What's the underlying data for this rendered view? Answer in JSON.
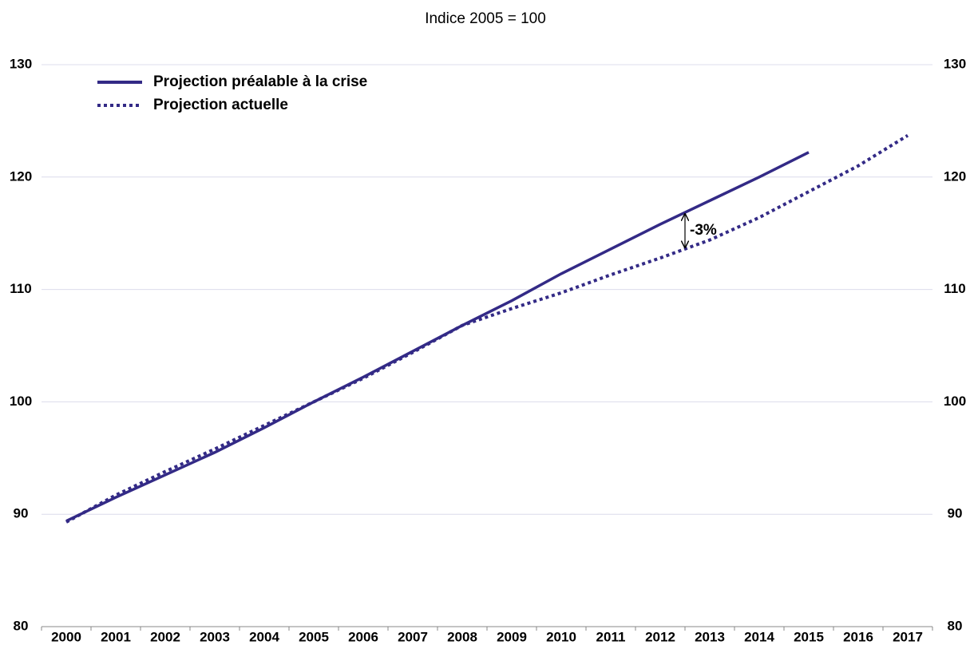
{
  "chart_data": {
    "type": "line",
    "title": "Indice 2005 = 100",
    "categories": [
      "2000",
      "2001",
      "2002",
      "2003",
      "2004",
      "2005",
      "2006",
      "2007",
      "2008",
      "2009",
      "2010",
      "2011",
      "2012",
      "2013",
      "2014",
      "2015",
      "2016",
      "2017"
    ],
    "series": [
      {
        "name": "Projection préalable à la crise",
        "color": "#332a86",
        "style": "solid",
        "values": [
          89.4,
          91.5,
          93.5,
          95.5,
          97.7,
          100,
          102.2,
          104.5,
          106.8,
          109.0,
          111.4,
          113.6,
          115.8,
          117.9,
          120.0,
          122.2,
          null,
          null
        ]
      },
      {
        "name": "Projection actuelle",
        "color": "#332a86",
        "style": "dotted",
        "values": [
          89.3,
          91.7,
          93.8,
          95.8,
          97.9,
          100,
          102.1,
          104.4,
          106.8,
          108.3,
          109.7,
          111.3,
          112.8,
          114.4,
          116.4,
          118.7,
          121.0,
          123.7
        ]
      }
    ],
    "annotation": "-3%",
    "ylim": [
      80,
      130
    ],
    "yticks": [
      80,
      90,
      100,
      110,
      120,
      130
    ],
    "y2lim": [
      80,
      130
    ],
    "y2ticks": [
      80,
      90,
      100,
      110,
      120,
      130
    ],
    "grid": true,
    "legend": "upper-left"
  }
}
